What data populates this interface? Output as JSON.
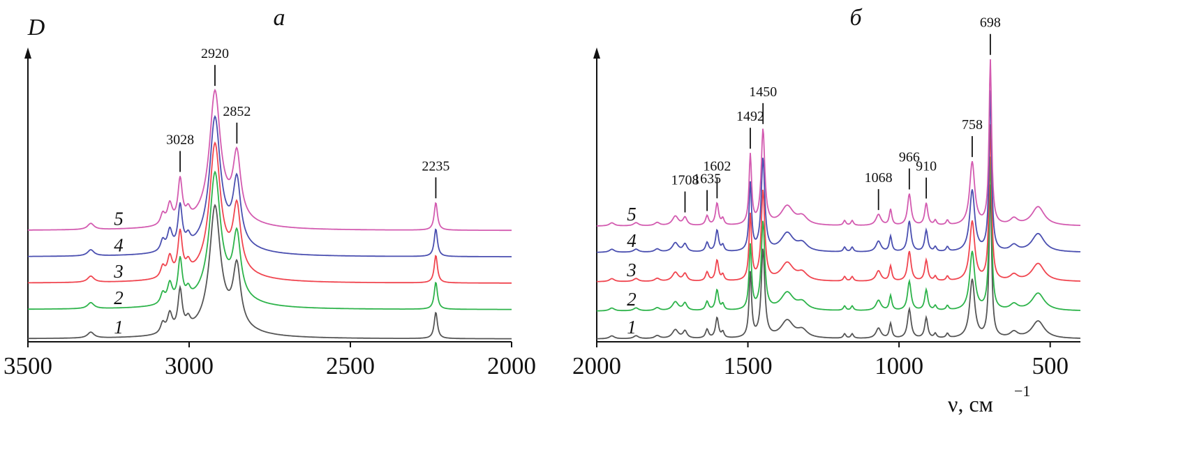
{
  "chart_data": [
    {
      "type": "line",
      "title": "а",
      "ylabel": "D",
      "xlabel": "",
      "xlim": [
        3500,
        2000
      ],
      "xticks": [
        3500,
        3000,
        2500,
        2000
      ],
      "xtick_labels": [
        "3500",
        "3000",
        "2500",
        "2000"
      ],
      "ylim": [
        0,
        1
      ],
      "grid": false,
      "peaks": [
        [
          3305,
          0.02,
          12
        ],
        [
          3082,
          0.035,
          8
        ],
        [
          3060,
          0.065,
          9
        ],
        [
          3028,
          0.14,
          8
        ],
        [
          3003,
          0.03,
          8
        ],
        [
          2920,
          0.4,
          20
        ],
        [
          2900,
          0.05,
          80
        ],
        [
          2852,
          0.2,
          14
        ],
        [
          2235,
          0.09,
          6
        ]
      ],
      "series": [
        {
          "name": "1",
          "color": "#555555",
          "offset": 0.005,
          "scale": 1.0
        },
        {
          "name": "2",
          "color": "#2db34a",
          "offset": 0.105,
          "scale": 1.03
        },
        {
          "name": "3",
          "color": "#f0454f",
          "offset": 0.195,
          "scale": 1.05
        },
        {
          "name": "4",
          "color": "#4a4fb0",
          "offset": 0.285,
          "scale": 1.05
        },
        {
          "name": "5",
          "color": "#d35bb0",
          "offset": 0.375,
          "scale": 1.05
        }
      ],
      "annotations": [
        {
          "label": "3028",
          "x": 3028
        },
        {
          "label": "2920",
          "x": 2920
        },
        {
          "label": "2852",
          "x": 2852
        },
        {
          "label": "2235",
          "x": 2235
        }
      ]
    },
    {
      "type": "line",
      "title": "б",
      "ylabel": "",
      "xlabel": "ν, см",
      "xlabel_sup": "−1",
      "xlim": [
        2000,
        400
      ],
      "xticks": [
        2000,
        1500,
        1000,
        500
      ],
      "xtick_labels": [
        "2000",
        "1500",
        "1000",
        "500"
      ],
      "ylim": [
        0,
        1
      ],
      "grid": false,
      "peaks": [
        [
          1950,
          0.01,
          10
        ],
        [
          1870,
          0.01,
          10
        ],
        [
          1800,
          0.01,
          10
        ],
        [
          1740,
          0.03,
          12
        ],
        [
          1708,
          0.025,
          8
        ],
        [
          1635,
          0.03,
          6
        ],
        [
          1602,
          0.07,
          6
        ],
        [
          1583,
          0.02,
          5
        ],
        [
          1492,
          0.22,
          5
        ],
        [
          1450,
          0.3,
          7
        ],
        [
          1370,
          0.06,
          25
        ],
        [
          1320,
          0.025,
          20
        ],
        [
          1180,
          0.015,
          5
        ],
        [
          1155,
          0.015,
          5
        ],
        [
          1068,
          0.035,
          10
        ],
        [
          1028,
          0.05,
          5
        ],
        [
          966,
          0.1,
          7
        ],
        [
          910,
          0.07,
          6
        ],
        [
          880,
          0.015,
          5
        ],
        [
          840,
          0.015,
          5
        ],
        [
          758,
          0.2,
          10
        ],
        [
          698,
          0.52,
          5
        ],
        [
          620,
          0.02,
          15
        ],
        [
          540,
          0.06,
          25
        ]
      ],
      "series": [
        {
          "name": "1",
          "color": "#555555",
          "offset": 0.005,
          "scale": 1.0
        },
        {
          "name": "2",
          "color": "#2db34a",
          "offset": 0.1,
          "scale": 1.0
        },
        {
          "name": "3",
          "color": "#f0454f",
          "offset": 0.2,
          "scale": 1.02
        },
        {
          "name": "4",
          "color": "#4a4fb0",
          "offset": 0.3,
          "scale": 1.05
        },
        {
          "name": "5",
          "color": "#d35bb0",
          "offset": 0.39,
          "scale": 1.08
        }
      ],
      "annotations": [
        {
          "label": "1708",
          "x": 1708
        },
        {
          "label": "1635",
          "x": 1635
        },
        {
          "label": "1602",
          "x": 1602
        },
        {
          "label": "1492",
          "x": 1492
        },
        {
          "label": "1450",
          "x": 1450
        },
        {
          "label": "1068",
          "x": 1068
        },
        {
          "label": "966",
          "x": 966
        },
        {
          "label": "910",
          "x": 910
        },
        {
          "label": "758",
          "x": 758
        },
        {
          "label": "698",
          "x": 698
        }
      ]
    }
  ]
}
